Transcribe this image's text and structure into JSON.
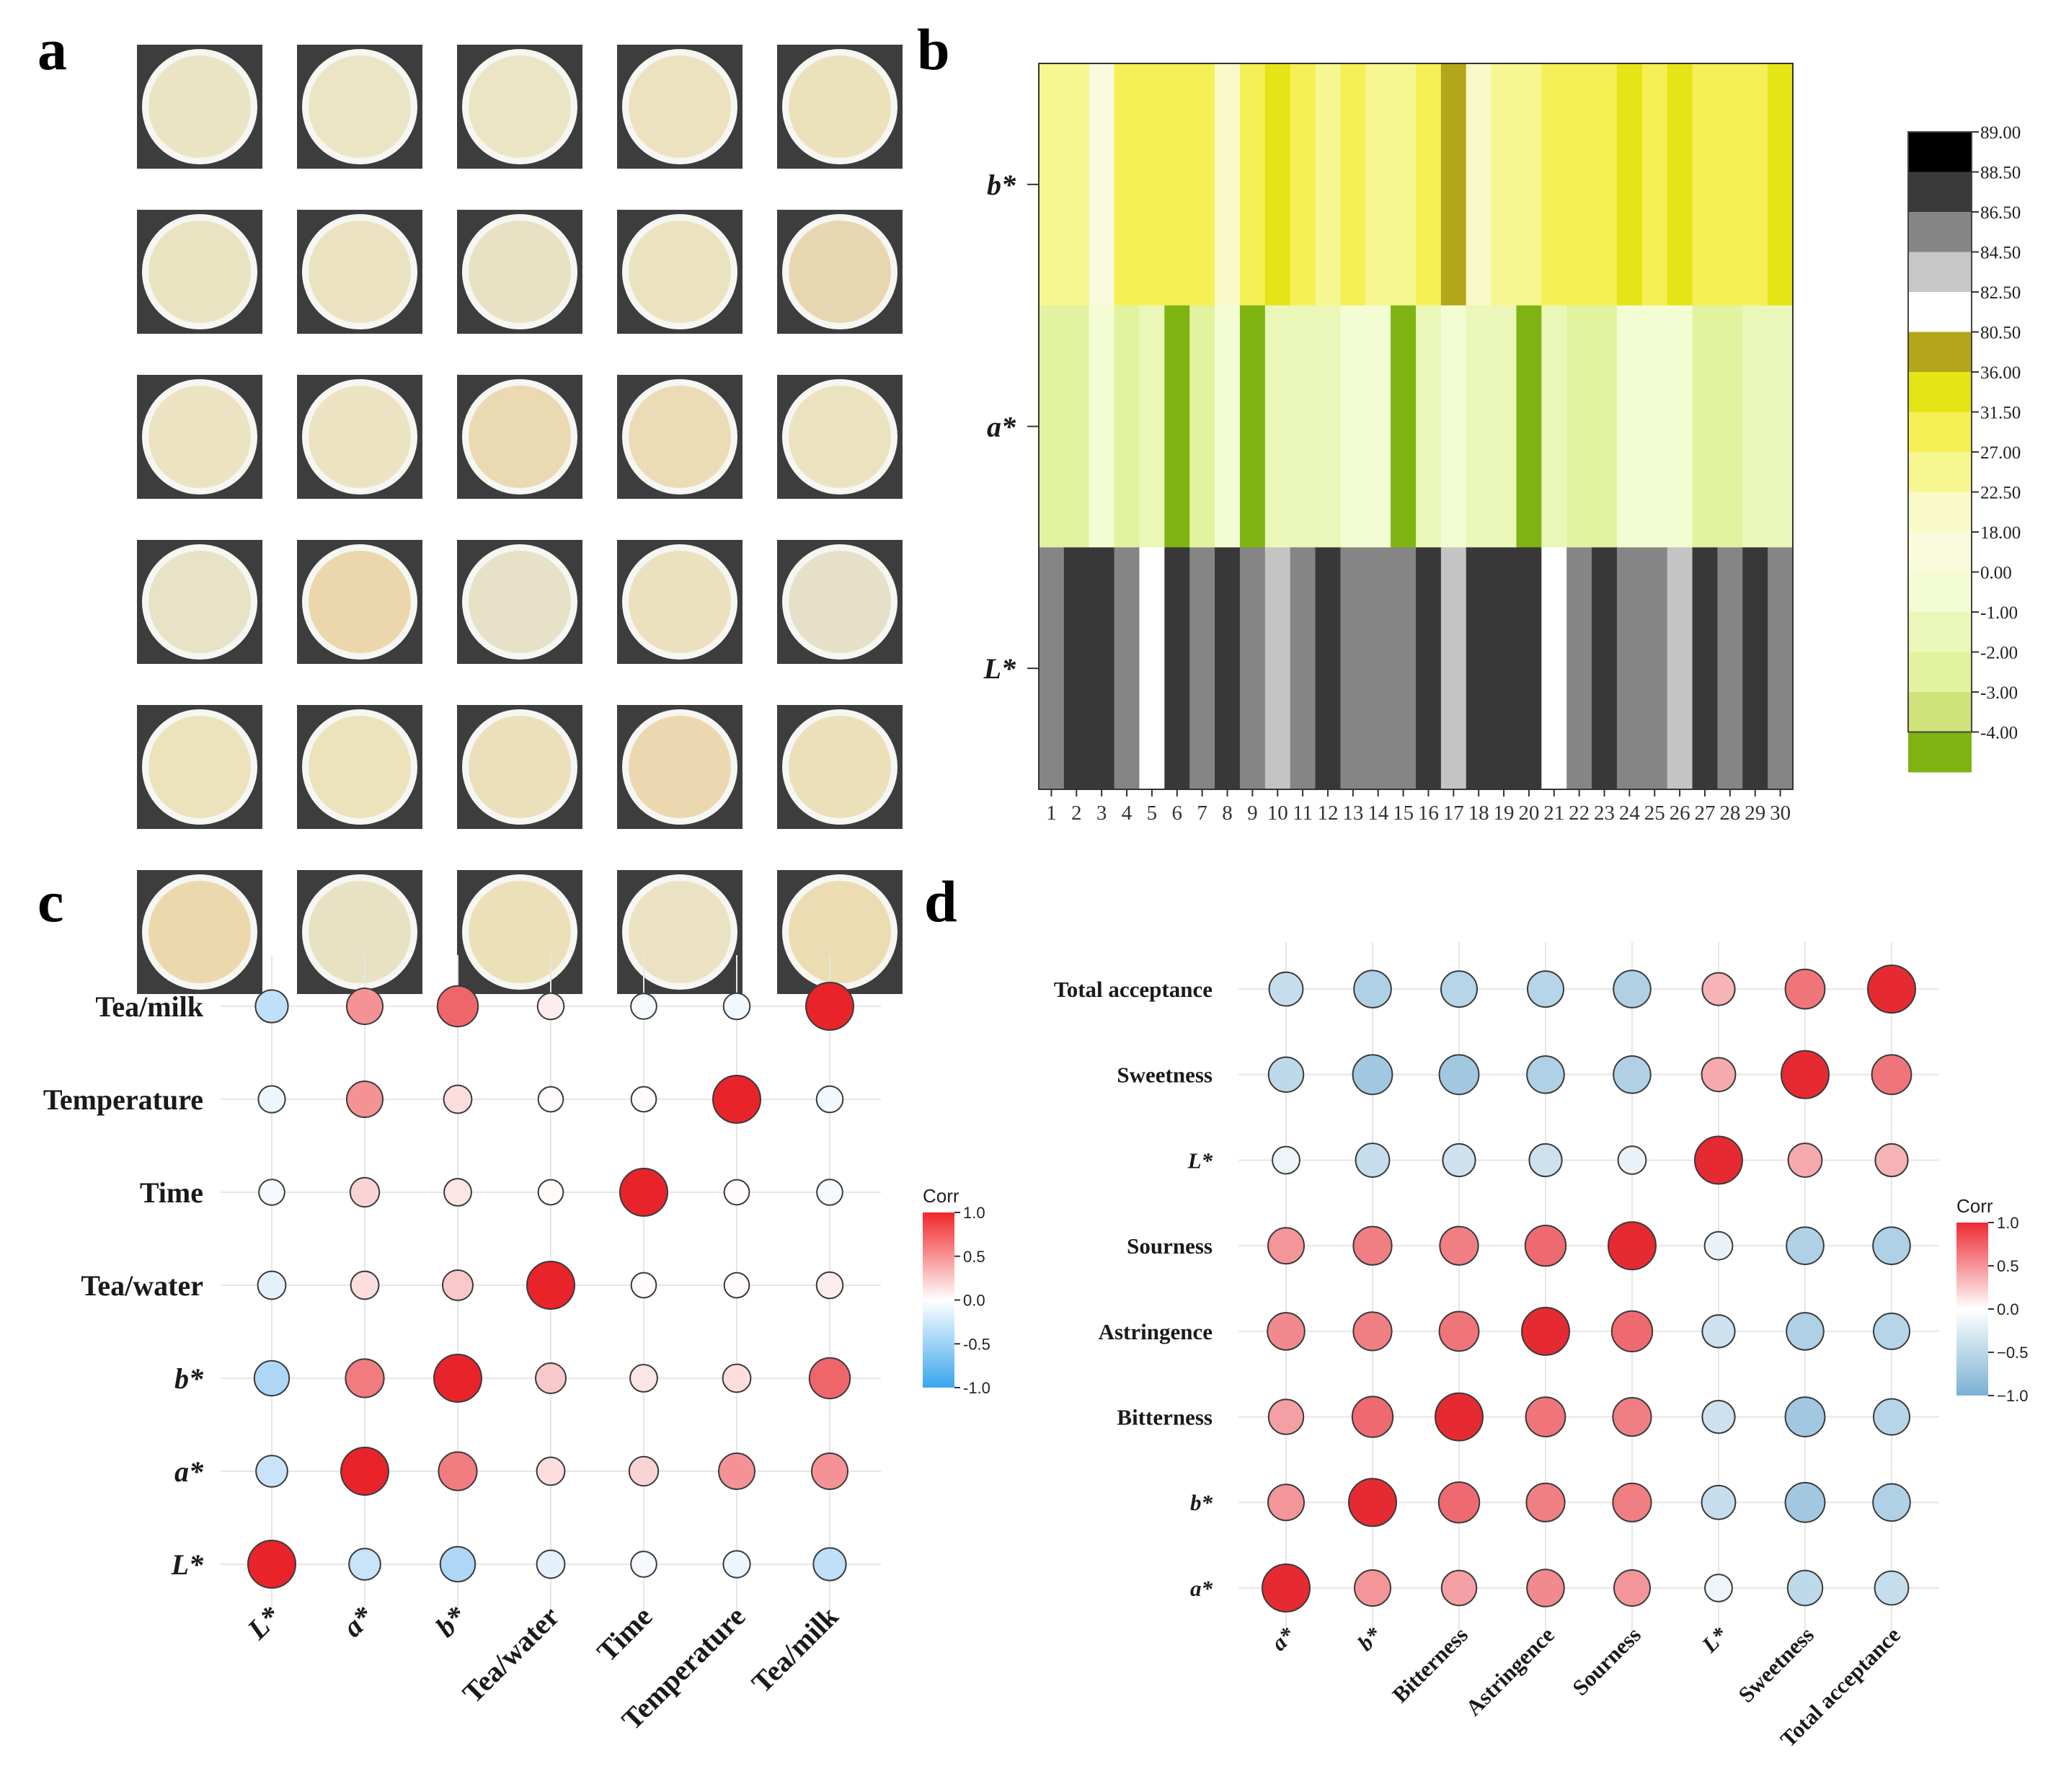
{
  "panels": {
    "a": "a",
    "b": "b",
    "c": "c",
    "d": "d"
  },
  "panel_a": {
    "description_colors": [
      [
        "#ebe4c4",
        "#ebe5c6",
        "#ebe5c5",
        "#ece2bf",
        "#ebe2bc"
      ],
      [
        "#eae3c2",
        "#ebe2c1",
        "#e9e1c3",
        "#ebe2c0",
        "#e8d6b0"
      ],
      [
        "#ebe3c1",
        "#ece3c3",
        "#ebd9b2",
        "#ecdcb6",
        "#ebe2bf"
      ],
      [
        "#e8e2c6",
        "#ecd7ad",
        "#e7e1c8",
        "#ebe1bf",
        "#e7e0c8"
      ],
      [
        "#ece3bd",
        "#ece2bc",
        "#ebe0bb",
        "#ecd8b0",
        "#ebe0ba"
      ],
      [
        "#ecd8ad",
        "#e8e1c3",
        "#ebe0b8",
        "#ebe2c4",
        "#ebdcb2"
      ]
    ]
  },
  "chart_data": [
    {
      "id": "b",
      "type": "heatmap",
      "rows": [
        "b*",
        "a*",
        "L*"
      ],
      "columns": [
        "1",
        "2",
        "3",
        "4",
        "5",
        "6",
        "7",
        "8",
        "9",
        "10",
        "11",
        "12",
        "13",
        "14",
        "15",
        "16",
        "17",
        "18",
        "19",
        "20",
        "21",
        "22",
        "23",
        "24",
        "25",
        "26",
        "27",
        "28",
        "29",
        "30"
      ],
      "cell_colors": {
        "b*": [
          "#f7f791",
          "#f7f791",
          "#fafadc",
          "#f5f055",
          "#f5f055",
          "#f5f055",
          "#f5f055",
          "#fafac8",
          "#f5f055",
          "#e4e416",
          "#f5f055",
          "#f7f791",
          "#f5f055",
          "#f7f791",
          "#f7f791",
          "#f5f055",
          "#b3a61a",
          "#fafac8",
          "#f7f791",
          "#f7f791",
          "#f5f055",
          "#f5f055",
          "#f5f055",
          "#e4e416",
          "#f5f055",
          "#e4e416",
          "#f5f055",
          "#f5f055",
          "#f5f055",
          "#e4e416"
        ],
        "a*": [
          "#e3f29e",
          "#e3f29e",
          "#f4fcd4",
          "#e3f29e",
          "#eaf7b8",
          "#7fb312",
          "#e3f29e",
          "#f4fcd4",
          "#7fb312",
          "#eaf7b8",
          "#eaf7b8",
          "#eaf7b8",
          "#f4fcd4",
          "#f4fcd4",
          "#7fb312",
          "#eaf7b8",
          "#f4fcd4",
          "#eaf7b8",
          "#eaf7b8",
          "#7fb312",
          "#eaf7b8",
          "#e3f29e",
          "#e3f29e",
          "#f4fcd4",
          "#f4fcd4",
          "#f4fcd4",
          "#e3f29e",
          "#e3f29e",
          "#eaf7b8",
          "#eaf7b8"
        ],
        "L*": [
          "#858585",
          "#383838",
          "#383838",
          "#858585",
          "#ffffff",
          "#383838",
          "#858585",
          "#383838",
          "#858585",
          "#c4c4c4",
          "#858585",
          "#383838",
          "#858585",
          "#858585",
          "#858585",
          "#383838",
          "#c4c4c4",
          "#383838",
          "#383838",
          "#383838",
          "#ffffff",
          "#858585",
          "#383838",
          "#858585",
          "#858585",
          "#c4c4c4",
          "#383838",
          "#858585",
          "#383838",
          "#858585"
        ]
      },
      "colorbar": {
        "ticks": [
          "89.00",
          "88.50",
          "86.50",
          "84.50",
          "82.50",
          "80.50",
          "36.00",
          "31.50",
          "27.00",
          "22.50",
          "18.00",
          "0.00",
          "-1.00",
          "-2.00",
          "-3.00",
          "-4.00"
        ],
        "segments": [
          "#000000",
          "#3a3a3a",
          "#858585",
          "#c7c7c7",
          "#ffffff",
          "#b3a61a",
          "#e4e416",
          "#f5f055",
          "#f7f791",
          "#fafac8",
          "#fafadc",
          "#f4fcd4",
          "#eaf7b8",
          "#e3f29e",
          "#cfe37a",
          "#7fb312"
        ]
      }
    },
    {
      "id": "c",
      "type": "scatter",
      "variables": [
        "L*",
        "a*",
        "b*",
        "Tea/water",
        "Time",
        "Temperature",
        "Tea/milk"
      ],
      "row_labels_top_to_bottom": [
        "Tea/milk",
        "Temperature",
        "Time",
        "Tea/water",
        "b*",
        "a*",
        "L*"
      ],
      "corr": [
        [
          1.0,
          -0.3,
          -0.45,
          -0.15,
          -0.05,
          -0.1,
          -0.35
        ],
        [
          -0.3,
          1.0,
          0.6,
          0.15,
          0.2,
          0.5,
          0.5
        ],
        [
          -0.45,
          0.6,
          1.0,
          0.25,
          0.12,
          0.15,
          0.7
        ],
        [
          -0.15,
          0.15,
          0.25,
          1.0,
          0.02,
          0.02,
          0.08
        ],
        [
          -0.05,
          0.2,
          0.12,
          0.02,
          1.0,
          0.02,
          -0.05
        ],
        [
          -0.1,
          0.5,
          0.15,
          0.02,
          0.02,
          1.0,
          -0.08
        ],
        [
          -0.35,
          0.5,
          0.7,
          0.08,
          -0.05,
          -0.08,
          1.0
        ]
      ],
      "legend": {
        "title": "Corr",
        "ticks": [
          "1.0",
          "0.5",
          "0.0",
          "-0.5",
          "-1.0"
        ],
        "range": [
          -1,
          1
        ]
      }
    },
    {
      "id": "d",
      "type": "scatter",
      "variables": [
        "a*",
        "b*",
        "Bitterness",
        "Astringence",
        "Sourness",
        "L*",
        "Sweetness",
        "Total acceptance"
      ],
      "row_labels_top_to_bottom": [
        "Total acceptance",
        "Sweetness",
        "L*",
        "Sourness",
        "Astringence",
        "Bitterness",
        "b*",
        "a*"
      ],
      "corr": [
        [
          1.0,
          0.5,
          0.45,
          0.55,
          0.5,
          -0.12,
          -0.45,
          -0.4
        ],
        [
          0.5,
          1.0,
          0.7,
          0.6,
          0.6,
          -0.4,
          -0.65,
          -0.55
        ],
        [
          0.45,
          0.7,
          1.0,
          0.65,
          0.6,
          -0.35,
          -0.65,
          -0.5
        ],
        [
          0.55,
          0.6,
          0.65,
          1.0,
          0.7,
          -0.35,
          -0.55,
          -0.5
        ],
        [
          0.5,
          0.6,
          0.6,
          0.7,
          1.0,
          -0.15,
          -0.55,
          -0.55
        ],
        [
          -0.12,
          -0.4,
          -0.35,
          -0.35,
          -0.15,
          1.0,
          0.4,
          0.35
        ],
        [
          -0.45,
          -0.65,
          -0.65,
          -0.55,
          -0.55,
          0.4,
          1.0,
          0.65
        ],
        [
          -0.4,
          -0.55,
          -0.5,
          -0.5,
          -0.55,
          0.35,
          0.65,
          1.0
        ]
      ],
      "legend": {
        "title": "Corr",
        "ticks": [
          "1.0",
          "0.5",
          "0.0",
          "−0.5",
          "−1.0"
        ],
        "range": [
          -1,
          1
        ]
      }
    }
  ]
}
